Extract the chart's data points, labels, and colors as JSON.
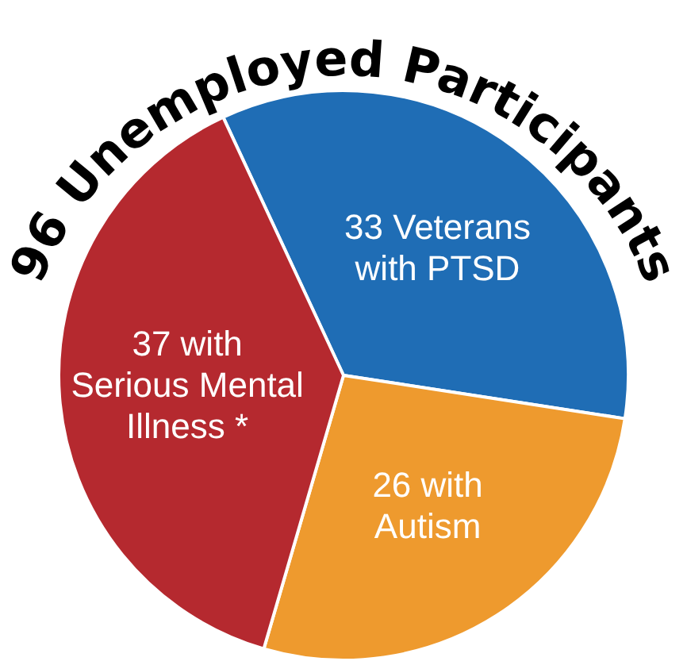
{
  "chart_data": {
    "type": "pie",
    "title": "96 Unemployed Participants",
    "categories": [
      "Veterans\nwith PTSD",
      "with\nAutism",
      "with\nSerious Mental\nIllness *"
    ],
    "values": [
      33,
      26,
      37
    ],
    "colors": [
      "#1f6db5",
      "#ee9a2e",
      "#b5292f"
    ],
    "data_labels": true,
    "legend": false
  }
}
